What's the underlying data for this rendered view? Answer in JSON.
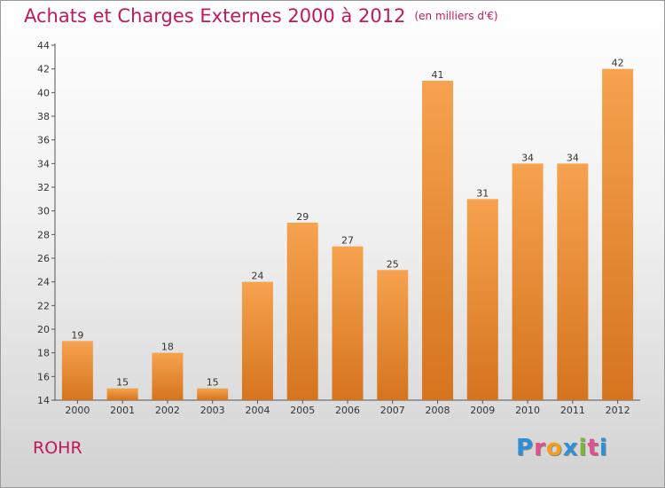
{
  "header": {
    "title": "Achats et Charges Externes 2000 à 2012",
    "unit": "(en milliers d'€)"
  },
  "footer": {
    "commune": "ROHR",
    "logo_letters": [
      "P",
      "r",
      "o",
      "x",
      "i",
      "t",
      "i"
    ],
    "logo_colors": [
      "#2e8fd6",
      "#e0508c",
      "#f0a020",
      "#2e8fd6",
      "#7cb82f",
      "#e0508c",
      "#2e8fd6"
    ]
  },
  "colors": {
    "bar_top": "#f6a24e",
    "bar_bottom": "#d5741e",
    "title": "#c2185b"
  },
  "chart_data": {
    "type": "bar",
    "title": "Achats et Charges Externes 2000 à 2012",
    "xlabel": "",
    "ylabel": "",
    "categories": [
      "2000",
      "2001",
      "2002",
      "2003",
      "2004",
      "2005",
      "2006",
      "2007",
      "2008",
      "2009",
      "2010",
      "2011",
      "2012"
    ],
    "values": [
      19,
      15,
      18,
      15,
      24,
      29,
      27,
      25,
      41,
      31,
      34,
      34,
      42
    ],
    "data_labels": [
      "19",
      "15",
      "18",
      "15",
      "24",
      "29",
      "27",
      "25",
      "41",
      "31",
      "34",
      "34",
      "42"
    ],
    "ylim": [
      14,
      44
    ],
    "yticks": [
      14,
      16,
      18,
      20,
      22,
      24,
      26,
      28,
      30,
      32,
      34,
      36,
      38,
      40,
      42,
      44
    ],
    "ytick_labels": [
      "14",
      "16",
      "18",
      "20",
      "22",
      "24",
      "26",
      "28",
      "30",
      "32",
      "34",
      "36",
      "38",
      "40",
      "42",
      "44"
    ],
    "grid": false,
    "legend": "none"
  }
}
